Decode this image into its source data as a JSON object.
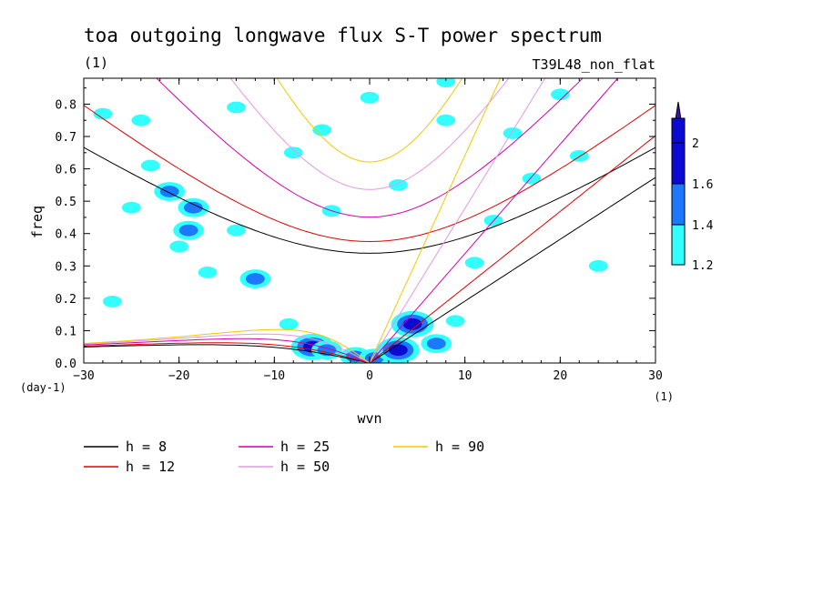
{
  "chart_data": {
    "type": "heatmap",
    "title": "toa outgoing longwave flux S-T power spectrum",
    "subtitle_left": "(1)",
    "subtitle_right": "T39L48_non_flat",
    "xlabel": "wvn",
    "ylabel": "freq",
    "x_unit": "(1)",
    "y_unit": "(day-1)",
    "xlim": [
      -30,
      30
    ],
    "ylim": [
      0,
      0.88
    ],
    "xticks": [
      -30,
      -20,
      -10,
      0,
      10,
      20,
      30
    ],
    "yticks": [
      0.0,
      0.1,
      0.2,
      0.3,
      0.4,
      0.5,
      0.6,
      0.7,
      0.8
    ],
    "colorbar": {
      "levels": [
        1.2,
        1.4,
        1.6,
        2
      ],
      "colors": [
        "#33ffff",
        "#1e78ff",
        "#0a0ad2",
        "#3c14aa"
      ],
      "extend": "max"
    },
    "contour_blobs": [
      {
        "x": -23,
        "y": 0.61,
        "level": 1
      },
      {
        "x": -21,
        "y": 0.53,
        "level": 2
      },
      {
        "x": -18.5,
        "y": 0.48,
        "level": 2
      },
      {
        "x": -19,
        "y": 0.41,
        "level": 2
      },
      {
        "x": -25,
        "y": 0.48,
        "level": 1
      },
      {
        "x": -14,
        "y": 0.41,
        "level": 1
      },
      {
        "x": -20,
        "y": 0.36,
        "level": 1
      },
      {
        "x": -17,
        "y": 0.28,
        "level": 1
      },
      {
        "x": -12,
        "y": 0.26,
        "level": 2
      },
      {
        "x": -8.5,
        "y": 0.12,
        "level": 1
      },
      {
        "x": -6,
        "y": 0.05,
        "level": 3
      },
      {
        "x": -4.5,
        "y": 0.04,
        "level": 2
      },
      {
        "x": -1.5,
        "y": 0.02,
        "level": 2
      },
      {
        "x": 0.5,
        "y": 0.015,
        "level": 2
      },
      {
        "x": 3,
        "y": 0.04,
        "level": 3
      },
      {
        "x": 4.5,
        "y": 0.12,
        "level": 3
      },
      {
        "x": 7,
        "y": 0.06,
        "level": 2
      },
      {
        "x": 9,
        "y": 0.13,
        "level": 1
      },
      {
        "x": 11,
        "y": 0.31,
        "level": 1
      },
      {
        "x": 13,
        "y": 0.44,
        "level": 1
      },
      {
        "x": 0,
        "y": 0.82,
        "level": 1
      },
      {
        "x": 8,
        "y": 0.75,
        "level": 1
      },
      {
        "x": 15,
        "y": 0.71,
        "level": 1
      },
      {
        "x": 22,
        "y": 0.64,
        "level": 1
      },
      {
        "x": -28,
        "y": 0.77,
        "level": 1
      },
      {
        "x": -24,
        "y": 0.75,
        "level": 1
      },
      {
        "x": -14,
        "y": 0.79,
        "level": 1
      },
      {
        "x": -5,
        "y": 0.72,
        "level": 1
      },
      {
        "x": -8,
        "y": 0.65,
        "level": 1
      },
      {
        "x": 17,
        "y": 0.57,
        "level": 1
      },
      {
        "x": 24,
        "y": 0.3,
        "level": 1
      },
      {
        "x": -27,
        "y": 0.19,
        "level": 1
      },
      {
        "x": -4,
        "y": 0.47,
        "level": 1
      },
      {
        "x": 3,
        "y": 0.55,
        "level": 1
      },
      {
        "x": 20,
        "y": 0.83,
        "level": 1
      },
      {
        "x": 8,
        "y": 0.87,
        "level": 1
      }
    ],
    "equivalent_depths": [
      {
        "name": "h =  8",
        "color": "#000000"
      },
      {
        "name": "h = 12",
        "color": "#e10000"
      },
      {
        "name": "h = 25",
        "color": "#d200aa"
      },
      {
        "name": "h = 50",
        "color": "#e696e6"
      },
      {
        "name": "h = 90",
        "color": "#f0c800"
      }
    ]
  }
}
